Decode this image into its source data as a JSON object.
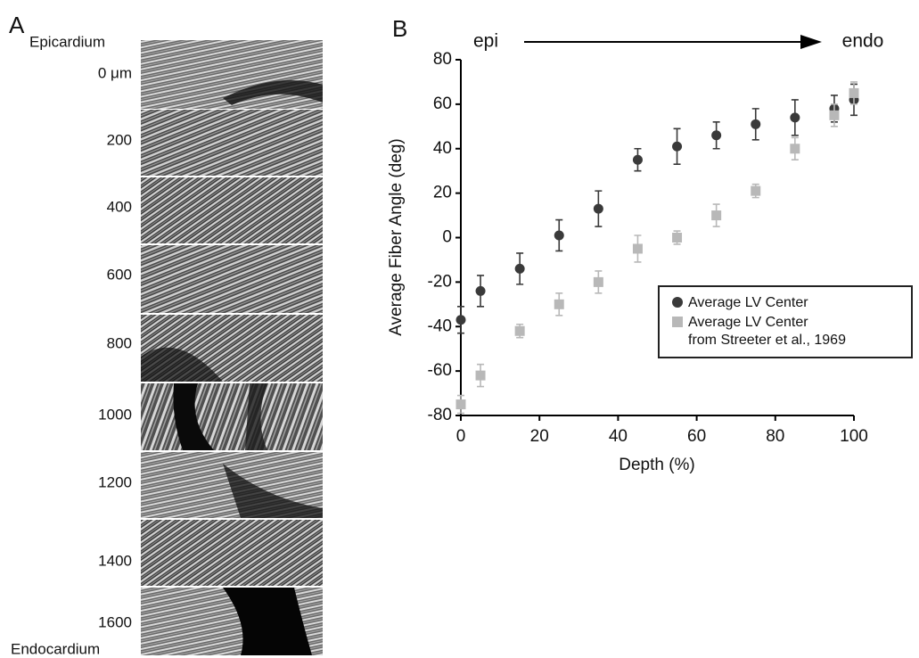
{
  "panel_a": {
    "label": "A",
    "top_label": "Epicardium",
    "bottom_label": "Endocardium",
    "depths": [
      "0 μm",
      "200",
      "400",
      "600",
      "800",
      "1000",
      "1200",
      "1400",
      "1600"
    ]
  },
  "chart_data": {
    "type": "scatter",
    "label": "B",
    "annotations": [
      "epi",
      "endo"
    ],
    "x_label": "Depth (%)",
    "y_label": "Average Fiber Angle (deg)",
    "x": [
      0,
      5,
      15,
      25,
      35,
      45,
      55,
      65,
      75,
      85,
      95,
      100
    ],
    "series": [
      {
        "name": "Average LV Center",
        "color": "#3a3a3a",
        "marker": "circle",
        "values": [
          -37,
          -24,
          -14,
          1,
          13,
          35,
          41,
          46,
          51,
          54,
          58,
          62
        ],
        "errors": [
          6,
          7,
          7,
          7,
          8,
          5,
          8,
          6,
          7,
          8,
          6,
          7
        ]
      },
      {
        "name": "Average LV Center\nfrom Streeter et al., 1969",
        "color": "#b8b8b8",
        "marker": "square",
        "values": [
          -75,
          -62,
          -42,
          -30,
          -20,
          -5,
          0,
          10,
          21,
          40,
          55,
          65
        ],
        "errors": [
          4,
          5,
          3,
          5,
          5,
          6,
          3,
          5,
          3,
          5,
          5,
          5
        ]
      }
    ],
    "xlim": [
      0,
      100
    ],
    "xticks": [
      0,
      20,
      40,
      60,
      80,
      100
    ],
    "ylim": [
      -80,
      80
    ],
    "yticks": [
      -80,
      -60,
      -40,
      -20,
      0,
      20,
      40,
      60,
      80
    ],
    "grid": false
  }
}
